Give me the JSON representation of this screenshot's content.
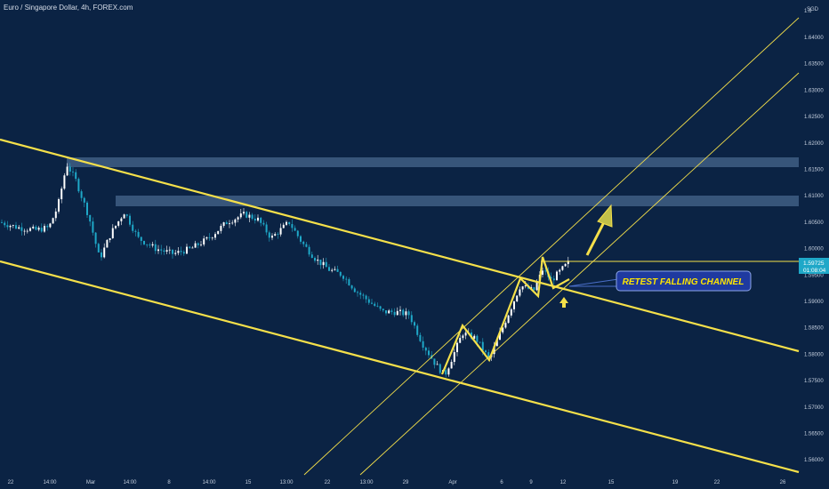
{
  "header": {
    "title": "Euro / Singapore Dollar, 4h, FOREX.com"
  },
  "chart_data": {
    "type": "candlestick",
    "title": "Euro / Singapore Dollar, 4h, FOREX.com",
    "currency": "SGD",
    "ylim": [
      1.5575,
      1.6505
    ],
    "y_ticks": [
      "1.64000",
      "1.63500",
      "1.63000",
      "1.62500",
      "1.62000",
      "1.61500",
      "1.61000",
      "1.60500",
      "1.60000",
      "1.59500",
      "1.59000",
      "1.58500",
      "1.58000",
      "1.57500",
      "1.57000",
      "1.56500",
      "1.56000"
    ],
    "x_ticks": [
      "22",
      "14:00",
      "Mar",
      "14:00",
      "8",
      "14:00",
      "15",
      "13:00",
      "22",
      "13:00",
      "29",
      "Apr",
      "6",
      "9",
      "12",
      "15",
      "19",
      "22",
      "26"
    ],
    "last_price": "1.59725",
    "countdown": "01:08:04",
    "grid": false,
    "colors": {
      "background": "#0b2344",
      "candle_up": "#ffffff",
      "candle_down": "#1fa8c8",
      "channel": "#f5e04a",
      "zone": "#5d7fa8",
      "price_tag": "#1fa8c8",
      "annotation_box": "#1f3aa0"
    },
    "resistance_zones": [
      {
        "from": 1.6165,
        "to": 1.6178
      },
      {
        "from": 1.6085,
        "to": 1.61
      }
    ],
    "horizontal_level": 1.598,
    "annotation": "RETEST FALLING CHANNEL"
  }
}
